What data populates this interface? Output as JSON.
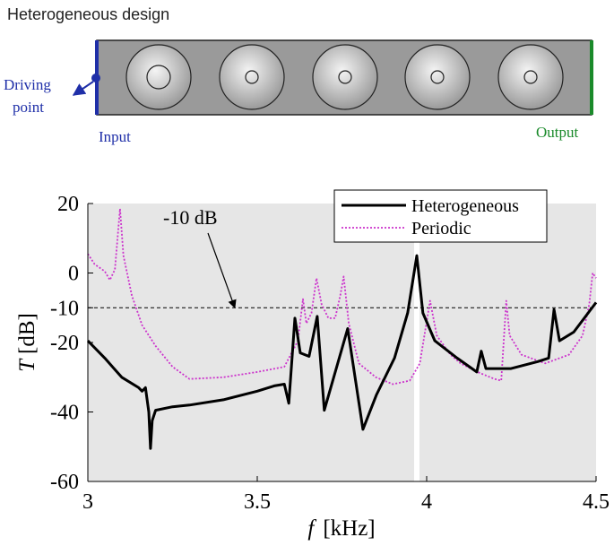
{
  "diagram": {
    "title": "Heterogeneous design",
    "driving_line1": "Driving",
    "driving_line2": "point",
    "input": "Input",
    "output": "Output"
  },
  "chart_data": {
    "type": "line",
    "xlabel": {
      "symbol": "f",
      "unit": "[kHz]"
    },
    "ylabel": {
      "symbol": "T",
      "unit": "[dB]"
    },
    "xlim": [
      3,
      4.5
    ],
    "xticks": [
      3,
      3.5,
      4,
      4.5
    ],
    "ylim": [
      -60,
      20
    ],
    "yticks": [
      -60,
      -40,
      -20,
      -10,
      0,
      20
    ],
    "reference_line": -10,
    "annotation": "-10 dB",
    "legend": "upper right",
    "series": [
      {
        "name": "Heterogeneous",
        "color": "#000000",
        "style": "solid",
        "x": [
          3.0,
          3.05,
          3.1,
          3.15,
          3.16,
          3.17,
          3.18,
          3.185,
          3.19,
          3.2,
          3.25,
          3.3,
          3.4,
          3.5,
          3.55,
          3.58,
          3.593,
          3.611,
          3.627,
          3.653,
          3.677,
          3.698,
          3.767,
          3.812,
          3.852,
          3.905,
          3.944,
          3.971,
          3.989,
          4.024,
          4.09,
          4.148,
          4.161,
          4.175,
          4.249,
          4.328,
          4.36,
          4.376,
          4.392,
          4.434,
          4.5
        ],
        "values": [
          -19.5,
          -24.5,
          -30,
          -33,
          -34,
          -33,
          -40,
          -50.5,
          -42.5,
          -39.5,
          -38.5,
          -38,
          -36.5,
          -34,
          -32.5,
          -32,
          -37.5,
          -13,
          -23,
          -24,
          -12.5,
          -39.5,
          -16,
          -45,
          -35,
          -24.5,
          -11.5,
          5,
          -11.5,
          -19.5,
          -24.5,
          -28.5,
          -22.5,
          -27.5,
          -27.5,
          -25.5,
          -24.5,
          -10.5,
          -19.5,
          -17,
          -8.5
        ]
      },
      {
        "name": "Periodic",
        "color": "#cc33cc",
        "style": "dotted",
        "x": [
          3.0,
          3.02,
          3.05,
          3.065,
          3.08,
          3.095,
          3.105,
          3.13,
          3.16,
          3.2,
          3.25,
          3.3,
          3.4,
          3.5,
          3.58,
          3.62,
          3.635,
          3.645,
          3.66,
          3.675,
          3.69,
          3.71,
          3.73,
          3.745,
          3.755,
          3.77,
          3.8,
          3.85,
          3.9,
          3.95,
          3.98,
          4.01,
          4.03,
          4.07,
          4.1,
          4.15,
          4.2,
          4.22,
          4.235,
          4.245,
          4.28,
          4.35,
          4.42,
          4.46,
          4.48,
          4.49,
          4.5
        ],
        "values": [
          5.5,
          2.5,
          0.5,
          -2,
          1,
          18.5,
          5,
          -6.5,
          -15,
          -21,
          -27,
          -30.5,
          -30,
          -28.5,
          -27,
          -19.5,
          -7.5,
          -14.5,
          -11.5,
          -1.5,
          -9,
          -13,
          -13,
          -6.5,
          -1,
          -14.5,
          -26,
          -30,
          -32,
          -31,
          -26,
          -8,
          -18,
          -23.5,
          -26,
          -28.5,
          -30.5,
          -31,
          -8,
          -18,
          -23.5,
          -26,
          -23.5,
          -18,
          -9,
          0,
          -1.5
        ]
      }
    ]
  }
}
